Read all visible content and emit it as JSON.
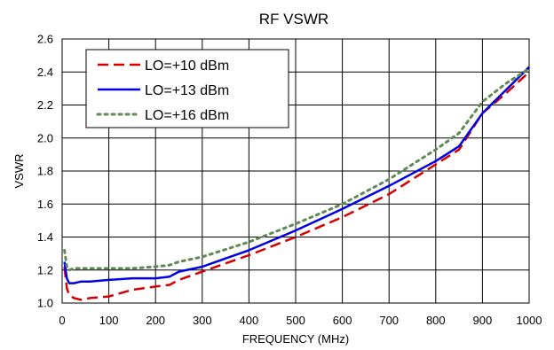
{
  "chart_data": {
    "type": "line",
    "title": "RF VSWR",
    "xlabel": "FREQUENCY (MHz)",
    "ylabel": "VSWR",
    "xlim": [
      0,
      1000
    ],
    "ylim": [
      1.0,
      2.6
    ],
    "xticks": [
      0,
      100,
      200,
      300,
      400,
      500,
      600,
      700,
      800,
      900,
      1000
    ],
    "yticks": [
      1.0,
      1.2,
      1.4,
      1.6,
      1.8,
      2.0,
      2.2,
      2.4,
      2.6
    ],
    "ytick_labels": [
      "1.0",
      "1.2",
      "1.4",
      "1.6",
      "1.8",
      "2.0",
      "2.2",
      "2.4",
      "2.6"
    ],
    "grid": true,
    "legend": "top-left",
    "series": [
      {
        "name": "LO=+10 dBm",
        "color": "#d40000",
        "style": "dashed",
        "x": [
          5,
          10,
          15,
          25,
          40,
          60,
          100,
          150,
          200,
          230,
          250,
          300,
          400,
          500,
          600,
          700,
          800,
          850,
          900,
          950,
          1000
        ],
        "y": [
          1.22,
          1.09,
          1.05,
          1.03,
          1.02,
          1.03,
          1.04,
          1.08,
          1.1,
          1.11,
          1.14,
          1.19,
          1.29,
          1.4,
          1.52,
          1.66,
          1.84,
          1.93,
          2.15,
          2.27,
          2.4
        ]
      },
      {
        "name": "LO=+13 dBm",
        "color": "#0000e6",
        "style": "solid",
        "x": [
          5,
          10,
          15,
          25,
          40,
          60,
          100,
          150,
          200,
          230,
          250,
          300,
          400,
          500,
          600,
          700,
          800,
          850,
          900,
          950,
          1000
        ],
        "y": [
          1.25,
          1.15,
          1.12,
          1.12,
          1.13,
          1.13,
          1.14,
          1.15,
          1.15,
          1.16,
          1.19,
          1.22,
          1.32,
          1.44,
          1.57,
          1.71,
          1.86,
          1.95,
          2.15,
          2.29,
          2.43
        ]
      },
      {
        "name": "LO=+16 dBm",
        "color": "#5f8a55",
        "style": "dotted",
        "x": [
          5,
          10,
          15,
          25,
          40,
          60,
          100,
          150,
          200,
          230,
          250,
          300,
          400,
          500,
          600,
          700,
          800,
          850,
          900,
          950,
          1000
        ],
        "y": [
          1.32,
          1.22,
          1.2,
          1.21,
          1.21,
          1.21,
          1.21,
          1.21,
          1.22,
          1.23,
          1.25,
          1.28,
          1.37,
          1.48,
          1.6,
          1.75,
          1.93,
          2.03,
          2.22,
          2.33,
          2.42
        ]
      }
    ]
  }
}
